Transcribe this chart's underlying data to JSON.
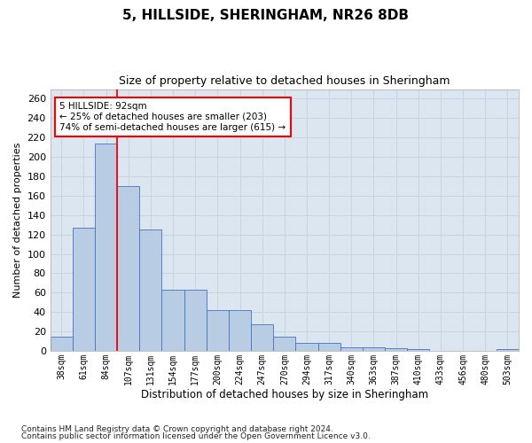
{
  "title": "5, HILLSIDE, SHERINGHAM, NR26 8DB",
  "subtitle": "Size of property relative to detached houses in Sheringham",
  "xlabel": "Distribution of detached houses by size in Sheringham",
  "ylabel": "Number of detached properties",
  "categories": [
    "38sqm",
    "61sqm",
    "84sqm",
    "107sqm",
    "131sqm",
    "154sqm",
    "177sqm",
    "200sqm",
    "224sqm",
    "247sqm",
    "270sqm",
    "294sqm",
    "317sqm",
    "340sqm",
    "363sqm",
    "387sqm",
    "410sqm",
    "433sqm",
    "456sqm",
    "480sqm",
    "503sqm"
  ],
  "values": [
    15,
    127,
    214,
    170,
    125,
    63,
    63,
    42,
    42,
    27,
    15,
    8,
    8,
    4,
    4,
    3,
    2,
    0,
    0,
    0,
    2
  ],
  "bar_color": "#b8cce4",
  "bar_edge_color": "#4472c4",
  "grid_color": "#c8d4e4",
  "background_color": "#dce6f1",
  "red_line_x": 2.5,
  "annotation_text": "5 HILLSIDE: 92sqm\n← 25% of detached houses are smaller (203)\n74% of semi-detached houses are larger (615) →",
  "ylim": [
    0,
    270
  ],
  "yticks": [
    0,
    20,
    40,
    60,
    80,
    100,
    120,
    140,
    160,
    180,
    200,
    220,
    240,
    260
  ],
  "footnote1": "Contains HM Land Registry data © Crown copyright and database right 2024.",
  "footnote2": "Contains public sector information licensed under the Open Government Licence v3.0.",
  "title_fontsize": 11,
  "subtitle_fontsize": 9,
  "xlabel_fontsize": 8.5,
  "ylabel_fontsize": 8,
  "tick_fontsize": 7,
  "footnote_fontsize": 6.5
}
